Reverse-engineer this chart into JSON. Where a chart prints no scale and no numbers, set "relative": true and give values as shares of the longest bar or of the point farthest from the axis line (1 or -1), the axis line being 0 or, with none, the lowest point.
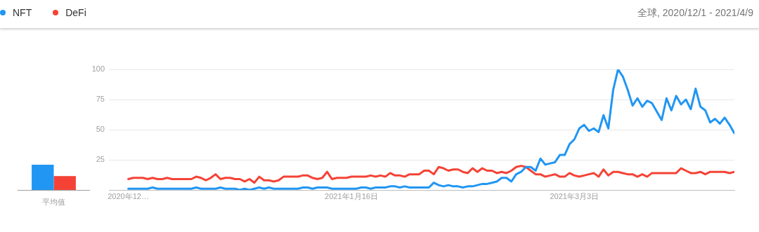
{
  "chart_data": [
    {
      "type": "line",
      "subtitle": "全球, 2020/12/1 - 2021/4/9",
      "legend": "top left",
      "grid": "y",
      "marker": "none",
      "x": [
        "2020-12-01",
        "2020-12-02",
        "2020-12-03",
        "2020-12-04",
        "2020-12-05",
        "2020-12-06",
        "2020-12-07",
        "2020-12-08",
        "2020-12-09",
        "2020-12-10",
        "2020-12-11",
        "2020-12-12",
        "2020-12-13",
        "2020-12-14",
        "2020-12-15",
        "2020-12-16",
        "2020-12-17",
        "2020-12-18",
        "2020-12-19",
        "2020-12-20",
        "2020-12-21",
        "2020-12-22",
        "2020-12-23",
        "2020-12-24",
        "2020-12-25",
        "2020-12-26",
        "2020-12-27",
        "2020-12-28",
        "2020-12-29",
        "2020-12-30",
        "2020-12-31",
        "2021-01-01",
        "2021-01-02",
        "2021-01-03",
        "2021-01-04",
        "2021-01-05",
        "2021-01-06",
        "2021-01-07",
        "2021-01-08",
        "2021-01-09",
        "2021-01-10",
        "2021-01-11",
        "2021-01-12",
        "2021-01-13",
        "2021-01-14",
        "2021-01-15",
        "2021-01-16",
        "2021-01-17",
        "2021-01-18",
        "2021-01-19",
        "2021-01-20",
        "2021-01-21",
        "2021-01-22",
        "2021-01-23",
        "2021-01-24",
        "2021-01-25",
        "2021-01-26",
        "2021-01-27",
        "2021-01-28",
        "2021-01-29",
        "2021-01-30",
        "2021-01-31",
        "2021-02-01",
        "2021-02-02",
        "2021-02-03",
        "2021-02-04",
        "2021-02-05",
        "2021-02-06",
        "2021-02-07",
        "2021-02-08",
        "2021-02-09",
        "2021-02-10",
        "2021-02-11",
        "2021-02-12",
        "2021-02-13",
        "2021-02-14",
        "2021-02-15",
        "2021-02-16",
        "2021-02-17",
        "2021-02-18",
        "2021-02-19",
        "2021-02-20",
        "2021-02-21",
        "2021-02-22",
        "2021-02-23",
        "2021-02-24",
        "2021-02-25",
        "2021-02-26",
        "2021-02-27",
        "2021-02-28",
        "2021-03-01",
        "2021-03-02",
        "2021-03-03",
        "2021-03-04",
        "2021-03-05",
        "2021-03-06",
        "2021-03-07",
        "2021-03-08",
        "2021-03-09",
        "2021-03-10",
        "2021-03-11",
        "2021-03-12",
        "2021-03-13",
        "2021-03-14",
        "2021-03-15",
        "2021-03-16",
        "2021-03-17",
        "2021-03-18",
        "2021-03-19",
        "2021-03-20",
        "2021-03-21",
        "2021-03-22",
        "2021-03-23",
        "2021-03-24",
        "2021-03-25",
        "2021-03-26",
        "2021-03-27",
        "2021-03-28",
        "2021-03-29",
        "2021-03-30",
        "2021-03-31",
        "2021-04-01",
        "2021-04-02",
        "2021-04-03",
        "2021-04-04",
        "2021-04-05"
      ],
      "xlim": [
        "2020-11-27",
        "2021-04-05"
      ],
      "xticks": [
        {
          "value": "2020-12-01",
          "label": "2020年12…"
        },
        {
          "value": "2021-01-16",
          "label": "2021年1月16日"
        },
        {
          "value": "2021-03-03",
          "label": "2021年3月3日"
        }
      ],
      "ylim": [
        0,
        100
      ],
      "yticks": [
        {
          "value": 0,
          "label": null
        },
        25,
        50,
        75,
        100
      ],
      "series": [
        {
          "name": "NFT",
          "color": "#2196f3",
          "values": [
            1,
            1,
            1,
            1,
            1,
            2,
            1,
            1,
            1,
            1,
            1,
            1,
            1,
            1,
            2,
            1,
            1,
            1,
            1,
            2,
            1,
            1,
            1,
            0,
            1,
            0,
            1,
            2,
            1,
            2,
            1,
            1,
            1,
            1,
            1,
            1,
            2,
            2,
            1,
            2,
            2,
            2,
            1,
            1,
            1,
            1,
            1,
            1,
            2,
            2,
            1,
            2,
            2,
            2,
            3,
            3,
            2,
            3,
            2,
            2,
            2,
            2,
            2,
            6,
            4,
            3,
            4,
            3,
            3,
            2,
            3,
            3,
            4,
            5,
            5,
            6,
            7,
            10,
            10,
            7,
            13,
            15,
            19,
            19,
            16,
            26,
            21,
            22,
            23,
            29,
            29,
            38,
            42,
            51,
            54,
            49,
            51,
            48,
            62,
            51,
            83,
            100,
            94,
            83,
            70,
            76,
            69,
            74,
            72,
            65,
            58,
            76,
            66,
            78,
            71,
            75,
            67,
            84,
            69,
            66,
            56,
            59,
            55,
            60,
            54,
            47
          ]
        },
        {
          "name": "DeFi",
          "color": "#f44336",
          "values": [
            9,
            10,
            10,
            10,
            9,
            10,
            9,
            9,
            10,
            9,
            9,
            9,
            9,
            9,
            11,
            10,
            8,
            10,
            13,
            9,
            10,
            10,
            9,
            9,
            7,
            9,
            6,
            11,
            8,
            8,
            7,
            8,
            11,
            11,
            11,
            11,
            12,
            12,
            10,
            9,
            10,
            15,
            9,
            10,
            10,
            10,
            11,
            11,
            11,
            11,
            12,
            11,
            12,
            11,
            14,
            12,
            12,
            11,
            13,
            13,
            13,
            16,
            16,
            13,
            19,
            18,
            16,
            17,
            17,
            15,
            14,
            18,
            15,
            18,
            16,
            16,
            14,
            15,
            14,
            16,
            19,
            20,
            19,
            16,
            13,
            13,
            11,
            12,
            13,
            11,
            11,
            14,
            12,
            11,
            12,
            13,
            14,
            11,
            17,
            12,
            15,
            15,
            14,
            13,
            13,
            11,
            13,
            11,
            14,
            14,
            14,
            14,
            14,
            14,
            18,
            16,
            14,
            14,
            15,
            13,
            15,
            15,
            15,
            15,
            14,
            15
          ]
        }
      ]
    },
    {
      "type": "bar",
      "relative": true,
      "categories": [
        "平均值"
      ],
      "series": [
        {
          "color": "#2196f3",
          "values": [
            1
          ]
        },
        {
          "color": "#f44336",
          "values": [
            0.55
          ]
        }
      ]
    }
  ]
}
